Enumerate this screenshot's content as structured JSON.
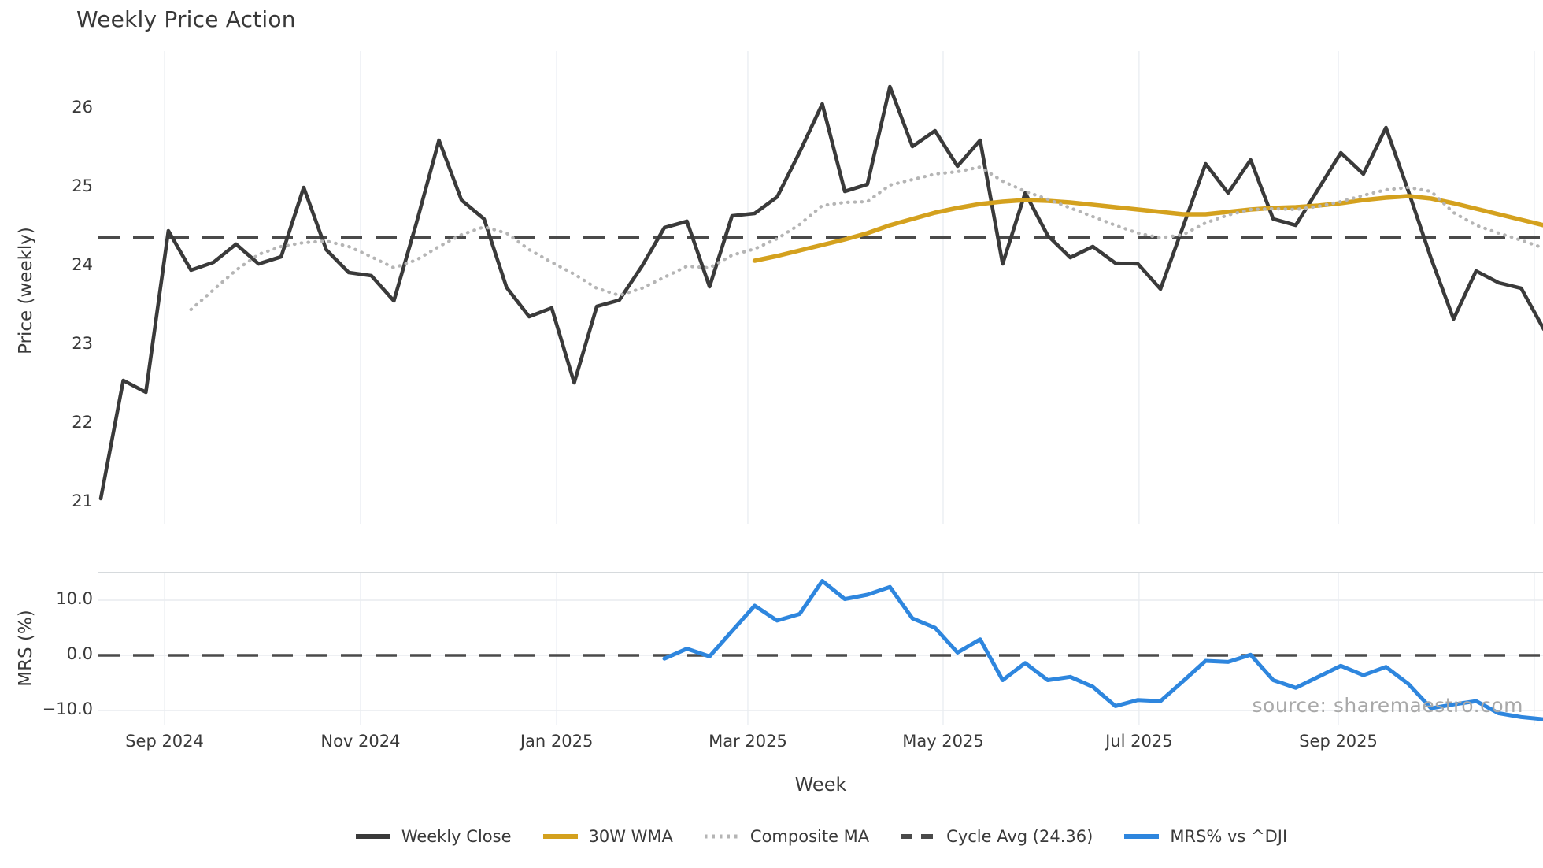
{
  "title": "Weekly Price Action",
  "watermark": "source: sharemaestro.com",
  "x_axis": {
    "label": "Week",
    "ticks": [
      {
        "label": "Sep 2024",
        "week": 2.83
      },
      {
        "label": "Nov 2024",
        "week": 11.52
      },
      {
        "label": "Jan 2025",
        "week": 20.22
      },
      {
        "label": "Mar 2025",
        "week": 28.7
      },
      {
        "label": "May 2025",
        "week": 37.36
      },
      {
        "label": "Jul 2025",
        "week": 46.05
      },
      {
        "label": "Sep 2025",
        "week": 54.89
      },
      {
        "label": "",
        "week": 63.58
      }
    ]
  },
  "legend": [
    {
      "label": "Weekly Close",
      "color": "#3a3a3a",
      "style": "solid"
    },
    {
      "label": "30W WMA",
      "color": "#d4a11e",
      "style": "solid"
    },
    {
      "label": "Composite MA",
      "color": "#b5b5b5",
      "style": "dotted"
    },
    {
      "label": "Cycle Avg (24.36)",
      "color": "#4a4a4a",
      "style": "dashed"
    },
    {
      "label": "MRS% vs ^DJI",
      "color": "#2e86de",
      "style": "solid"
    }
  ],
  "colors": {
    "close": "#3a3a3a",
    "wma": "#d4a11e",
    "composite": "#b5b5b5",
    "cycle_avg": "#4a4a4a",
    "mrs": "#2e86de",
    "gridline": "#edf0f4",
    "hgridline": "#e9ecef",
    "spine": "#c9cdd2",
    "text": "#3a3a3a",
    "watermark": "#a9a9a9"
  },
  "chart_data": {
    "type": "line",
    "title": "Weekly Price Action",
    "xlabel": "Week",
    "x_unit": "week_index (week 0 = first plotted week, early Aug 2024; 8.7 weeks between labeled ticks)",
    "panels": [
      {
        "name": "price",
        "ylabel": "Price (weekly)",
        "yticks": [
          "26",
          "25",
          "24",
          "23",
          "22",
          "21"
        ],
        "ytick_values": [
          26,
          25,
          24,
          23,
          22,
          21
        ],
        "ylim": [
          20.73,
          26.78
        ],
        "grid": "vertical-only",
        "series": [
          {
            "name": "Weekly Close",
            "color": "#3a3a3a",
            "style": "solid",
            "width": 4.6,
            "start_week": 0,
            "values": [
              21.05,
              22.55,
              22.4,
              24.45,
              23.95,
              24.05,
              24.28,
              24.03,
              24.12,
              25.0,
              24.21,
              23.92,
              23.88,
              23.56,
              24.55,
              25.6,
              24.84,
              24.6,
              23.73,
              23.36,
              23.47,
              22.52,
              23.49,
              23.57,
              24.0,
              24.49,
              24.57,
              23.74,
              24.64,
              24.67,
              24.88,
              25.45,
              26.06,
              24.95,
              25.04,
              26.28,
              25.52,
              25.72,
              25.27,
              25.6,
              24.03,
              24.93,
              24.39,
              24.11,
              24.25,
              24.04,
              24.03,
              23.71,
              24.5,
              25.3,
              24.93,
              25.35,
              24.6,
              24.52,
              24.98,
              25.44,
              25.17,
              25.76,
              24.95,
              24.1,
              23.33,
              23.94,
              23.79,
              23.72,
              23.2
            ]
          },
          {
            "name": "30W WMA",
            "color": "#d4a11e",
            "style": "solid",
            "width": 5.5,
            "start_week": 29,
            "values": [
              24.07,
              24.13,
              24.2,
              24.27,
              24.34,
              24.42,
              24.52,
              24.6,
              24.68,
              24.74,
              24.79,
              24.82,
              24.84,
              24.83,
              24.81,
              24.78,
              24.75,
              24.72,
              24.69,
              24.66,
              24.66,
              24.69,
              24.72,
              24.74,
              24.75,
              24.77,
              24.8,
              24.84,
              24.87,
              24.89,
              24.86,
              24.8,
              24.73,
              24.66,
              24.59,
              24.52
            ]
          },
          {
            "name": "Composite MA",
            "color": "#b5b5b5",
            "style": "dotted",
            "width": 4.2,
            "start_week": 4,
            "values": [
              23.45,
              23.7,
              23.95,
              24.15,
              24.25,
              24.3,
              24.32,
              24.25,
              24.12,
              23.98,
              24.08,
              24.25,
              24.4,
              24.5,
              24.42,
              24.21,
              24.05,
              23.9,
              23.72,
              23.63,
              23.72,
              23.86,
              24.0,
              23.98,
              24.14,
              24.22,
              24.35,
              24.53,
              24.77,
              24.81,
              24.82,
              25.03,
              25.1,
              25.17,
              25.2,
              25.26,
              25.08,
              24.95,
              24.85,
              24.74,
              24.63,
              24.52,
              24.42,
              24.36,
              24.4,
              24.55,
              24.65,
              24.72,
              24.73,
              24.72,
              24.76,
              24.82,
              24.9,
              24.97,
              25.0,
              24.95,
              24.68,
              24.52,
              24.42,
              24.33,
              24.23
            ]
          },
          {
            "name": "Cycle Avg (24.36)",
            "color": "#4a4a4a",
            "style": "dashed",
            "width": 4,
            "constant": 24.36
          }
        ]
      },
      {
        "name": "mrs",
        "ylabel": "MRS (%)",
        "yticks": [
          "10.0",
          "0.0",
          "−10.0"
        ],
        "ytick_values": [
          10,
          0,
          -10
        ],
        "ylim": [
          -12.7,
          15.0
        ],
        "grid": "horizontal-and-vertical",
        "series": [
          {
            "name": "MRS% vs ^DJI",
            "color": "#2e86de",
            "style": "solid",
            "width": 5,
            "start_week": 25,
            "values": [
              -0.6,
              1.2,
              -0.2,
              4.4,
              9.0,
              6.3,
              7.5,
              13.5,
              10.2,
              11.0,
              12.4,
              6.7,
              5.0,
              0.5,
              2.9,
              -4.5,
              -1.4,
              -4.5,
              -3.9,
              -5.7,
              -9.2,
              -8.1,
              -8.3,
              -4.7,
              -1.0,
              -1.2,
              0.1,
              -4.5,
              -5.9,
              -3.9,
              -1.9,
              -3.6,
              -2.1,
              -5.2,
              -9.6,
              -8.9,
              -8.3,
              -10.5,
              -11.2,
              -11.6
            ]
          },
          {
            "name": "zero-line",
            "color": "#4a4a4a",
            "style": "dashed",
            "width": 3.5,
            "constant": 0
          }
        ]
      }
    ],
    "legend_position": "bottom-center",
    "annotations": [
      {
        "text": "source: sharemaestro.com",
        "position": "bottom-right"
      }
    ]
  }
}
